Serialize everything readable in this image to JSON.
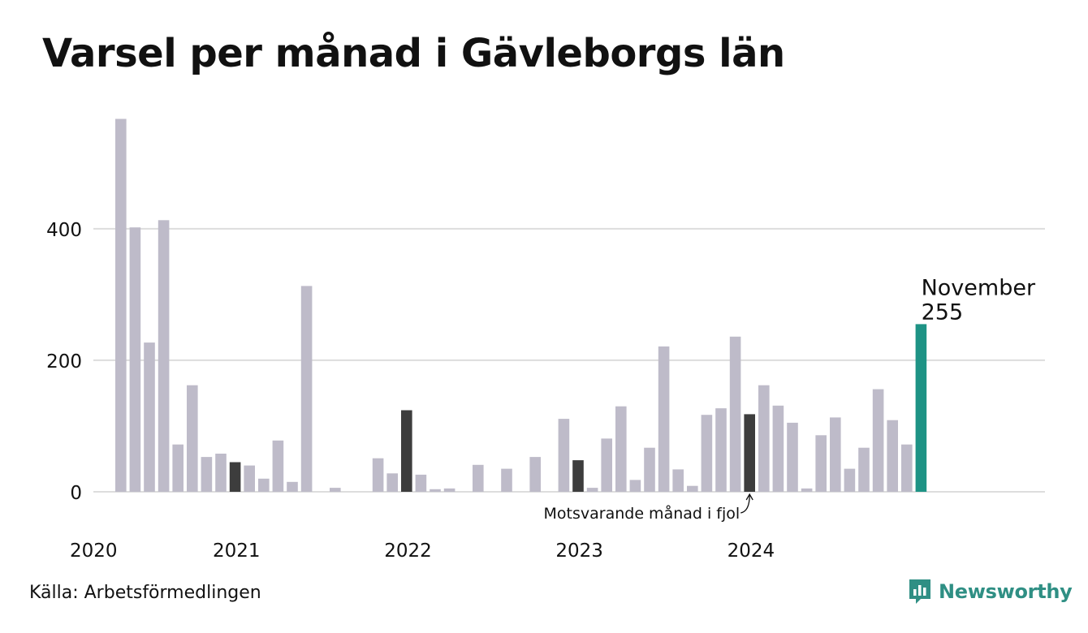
{
  "title": "Varsel per månad i Gävleborgs län",
  "source": "Källa: Arbetsförmedlingen",
  "brand": "Newsworthy",
  "colors": {
    "bar": "#bebbc9",
    "comparison": "#3d3d3d",
    "latest": "#1e9385",
    "grid": "#dddddd"
  },
  "chart_data": {
    "type": "bar",
    "y_ticks": [
      0,
      200,
      400
    ],
    "ylim": [
      0,
      580
    ],
    "x_ticks": [
      {
        "label": "2020",
        "index": 0
      },
      {
        "label": "2021",
        "index": 10
      },
      {
        "label": "2022",
        "index": 22
      },
      {
        "label": "2023",
        "index": 34
      },
      {
        "label": "2024",
        "index": 46
      }
    ],
    "values": [
      567,
      402,
      227,
      413,
      72,
      162,
      53,
      58,
      45,
      40,
      20,
      78,
      15,
      313,
      0,
      6,
      0,
      0,
      51,
      28,
      124,
      26,
      4,
      5,
      0,
      41,
      0,
      35,
      0,
      53,
      0,
      111,
      48,
      6,
      81,
      130,
      18,
      67,
      221,
      34,
      9,
      117,
      127,
      236,
      118,
      162,
      131,
      105,
      5,
      86,
      113,
      35,
      67,
      156,
      109,
      72,
      255
    ],
    "comparison_indices": [
      8,
      20,
      32,
      44
    ],
    "latest_index": 56,
    "latest_label": "November",
    "latest_value": "255",
    "annotation": "Motsvarande månad i fjol"
  }
}
